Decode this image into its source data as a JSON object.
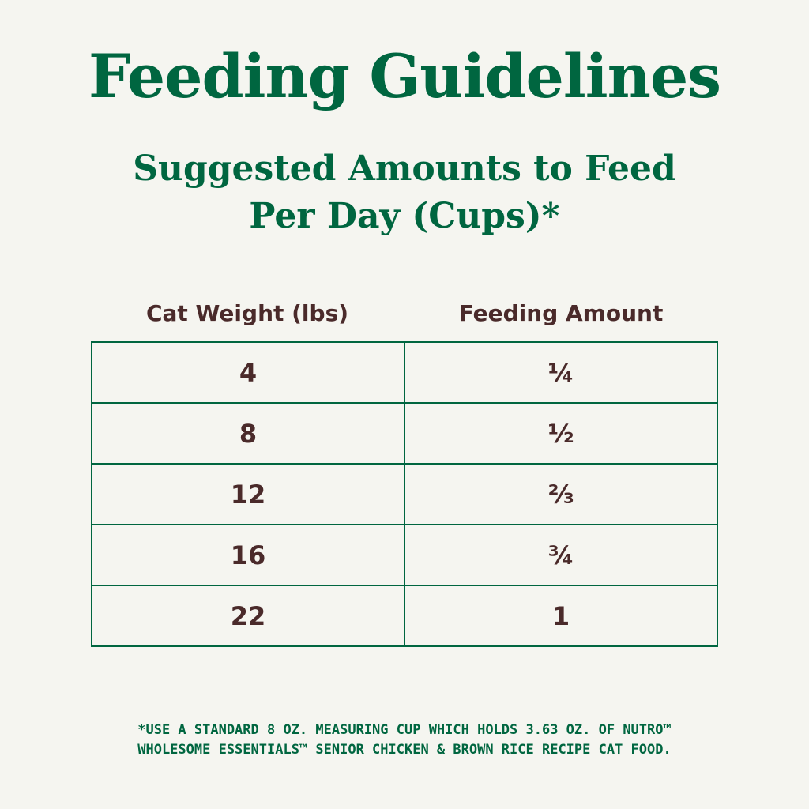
{
  "header": {
    "title": "Feeding Guidelines",
    "subtitle": [
      "Suggested Amounts to Feed",
      "Per Day (Cups)*"
    ]
  },
  "table": {
    "columns": [
      "Cat Weight (lbs)",
      "Feeding Amount"
    ],
    "rows": [
      [
        "4",
        "¼"
      ],
      [
        "8",
        "½"
      ],
      [
        "12",
        "⅔"
      ],
      [
        "16",
        "¾"
      ],
      [
        "22",
        "1"
      ]
    ]
  },
  "footnote": [
    "*USE A STANDARD 8 OZ. MEASURING CUP WHICH HOLDS 3.63 OZ. OF NUTRO™",
    "WHOLESOME ESSENTIALS™ SENIOR CHICKEN & BROWN RICE RECIPE CAT FOOD."
  ]
}
